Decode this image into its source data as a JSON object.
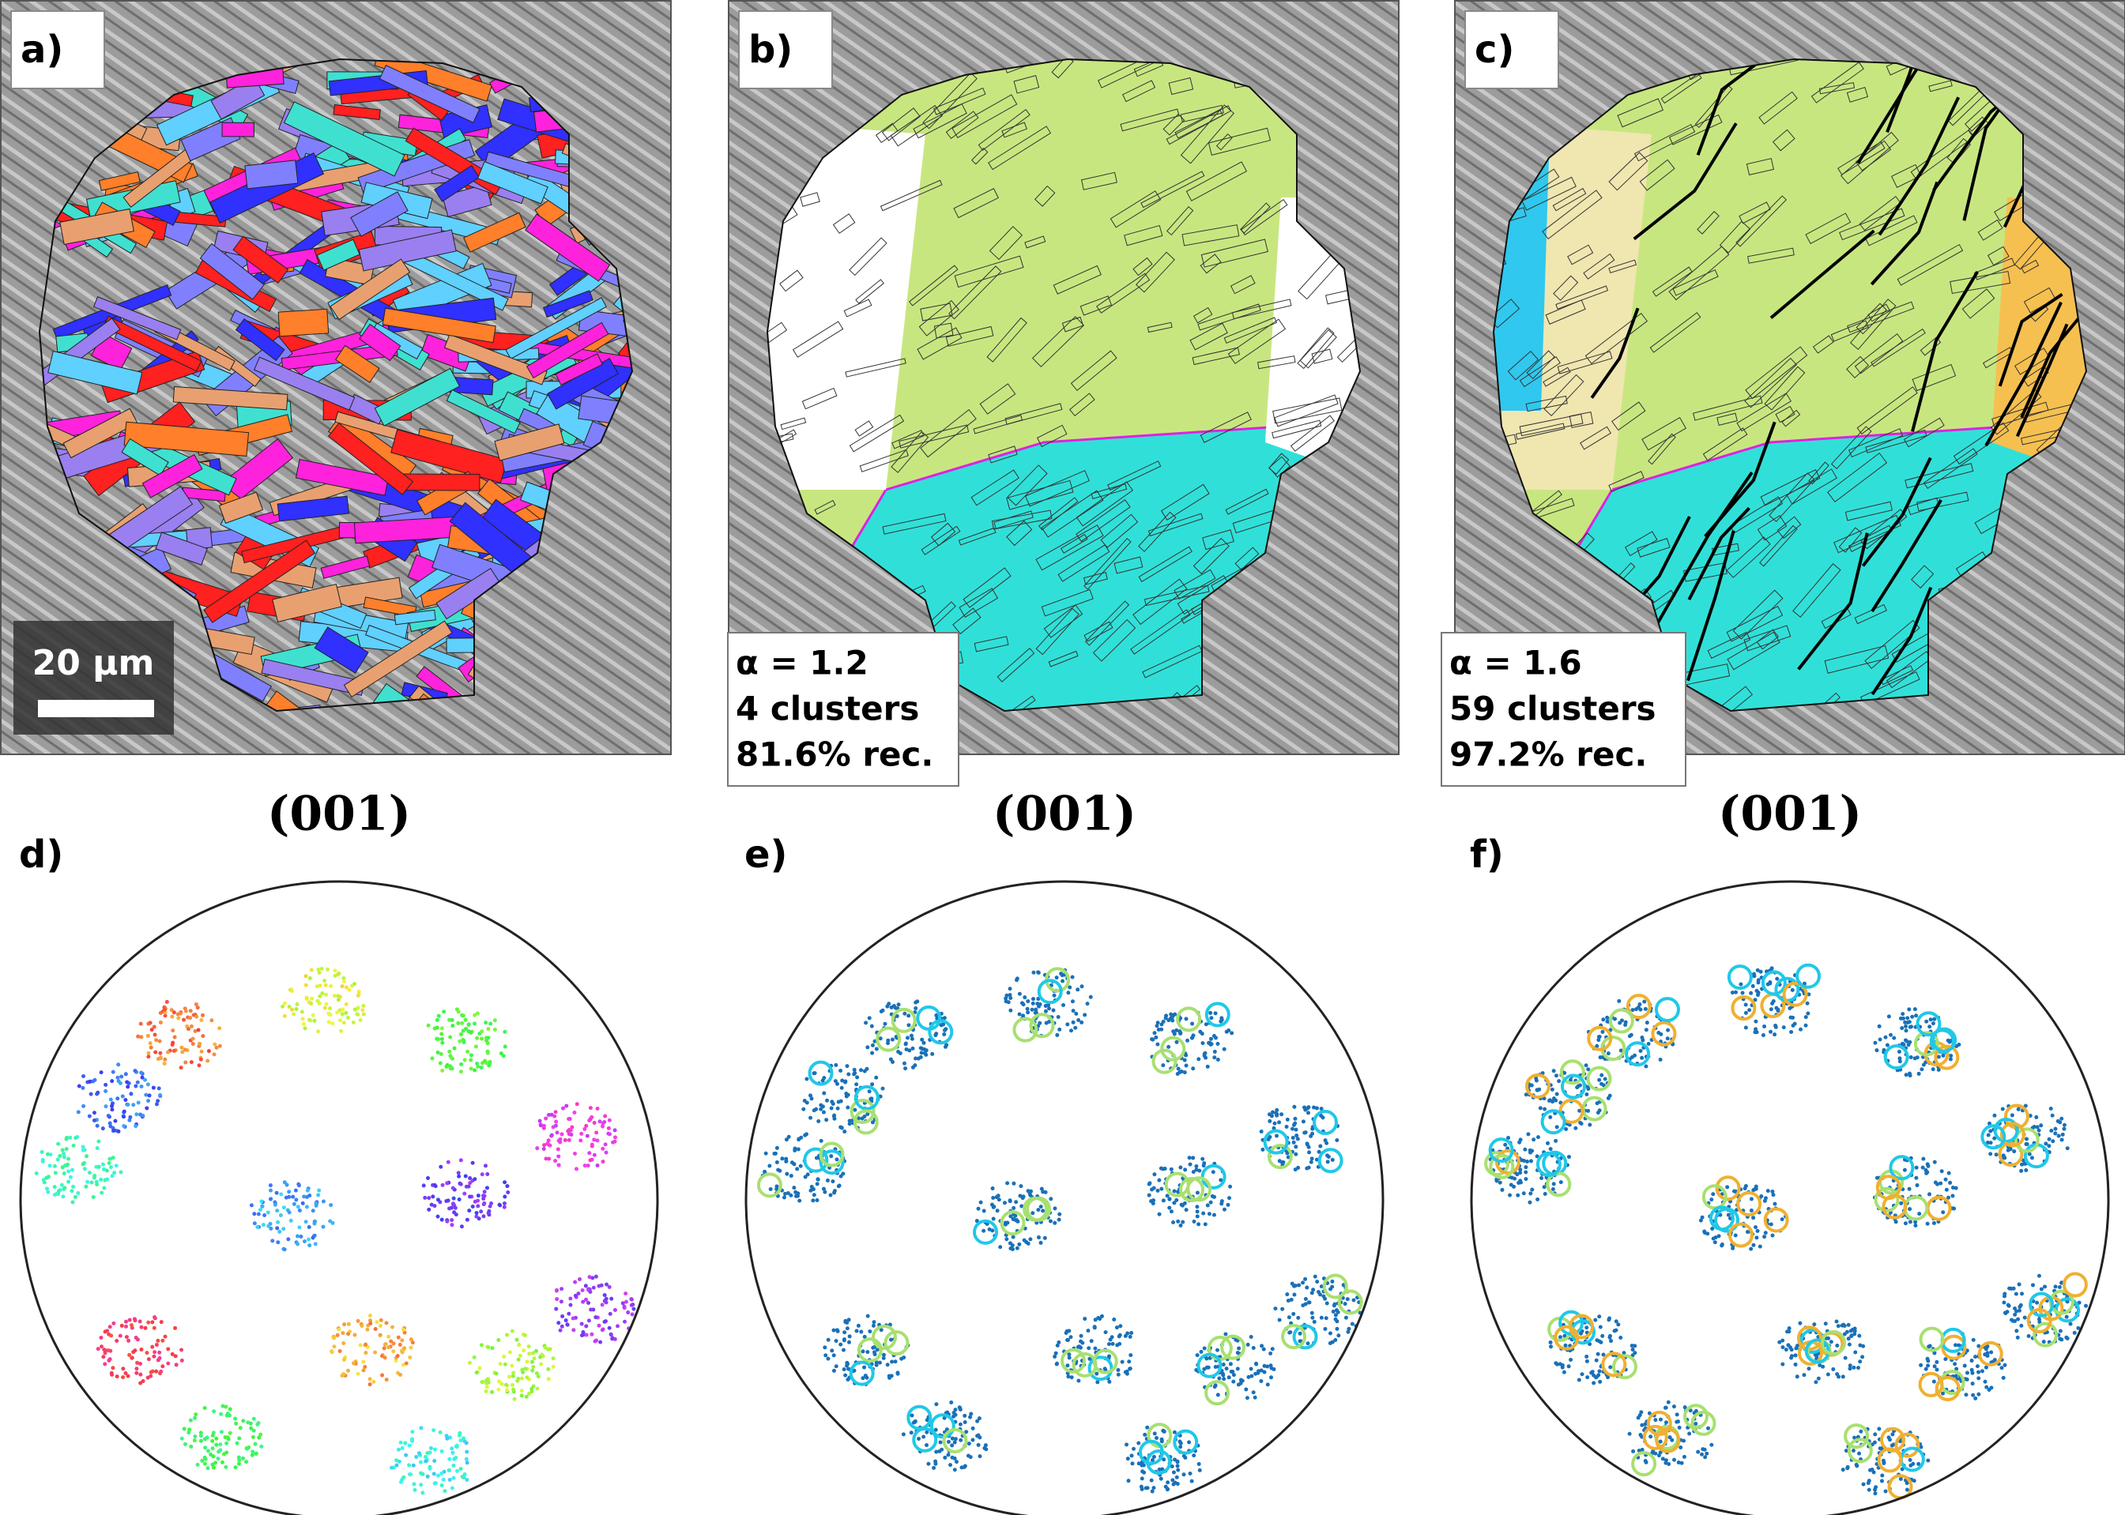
{
  "panels": [
    {
      "label": "a)",
      "scale_bar": "20 μm"
    },
    {
      "label": "b)",
      "info": [
        "α = 1.2",
        "4 clusters",
        "81.6% rec."
      ]
    },
    {
      "label": "c)",
      "info": [
        "α = 1.6",
        "59 clusters",
        "97.2% rec."
      ]
    }
  ],
  "pole_figures": [
    {
      "label": "d)",
      "title": "(001)"
    },
    {
      "label": "e)",
      "title": "(001)"
    },
    {
      "label": "f)",
      "title": "(001)"
    }
  ]
}
